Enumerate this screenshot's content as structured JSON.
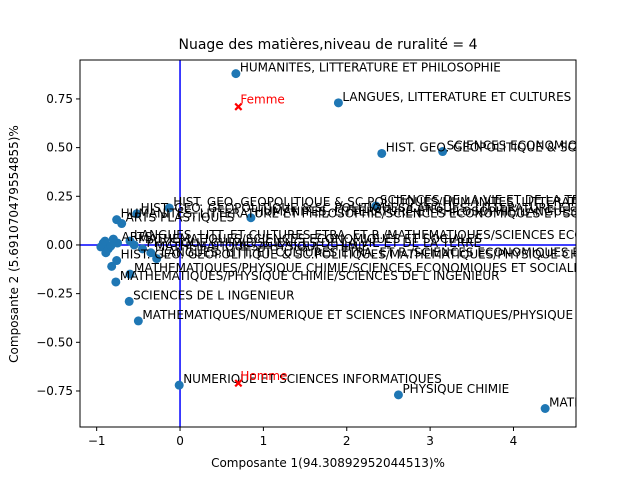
{
  "chart_data": {
    "type": "scatter",
    "title": "Nuage des matières,niveau de ruralité = 4",
    "xlabel": "Composante 1(94.30892952044513)%",
    "ylabel": "Composante 2 (5.691070479554855)%",
    "xlim": [
      -1.2,
      4.75
    ],
    "ylim": [
      -0.935,
      0.95
    ],
    "xticks": [
      -1,
      0,
      1,
      2,
      3,
      4
    ],
    "yticks": [
      -0.75,
      -0.5,
      -0.25,
      0.0,
      0.25,
      0.5,
      0.75
    ],
    "ytick_labels": [
      "−0.75",
      "−0.50",
      "−0.25",
      "0.00",
      "0.25",
      "0.50",
      "0.75"
    ],
    "xtick_labels": [
      "−1",
      "0",
      "1",
      "2",
      "3",
      "4"
    ],
    "grid": false,
    "colors": {
      "points": "#1f77b4",
      "supplementary": "#ff0000",
      "axes_lines": "#0000ff"
    },
    "reference_lines": {
      "x": 0,
      "y": 0
    },
    "series": [
      {
        "role": "individuals",
        "points": [
          {
            "x": 0.67,
            "y": 0.88,
            "label": "HUMANITES, LITTERATURE ET PHILOSOPHIE"
          },
          {
            "x": 1.9,
            "y": 0.73,
            "label": "LANGUES, LITTERATURE ET CULTURES ETRANGERES"
          },
          {
            "x": 3.15,
            "y": 0.48,
            "label": "SCIENCES ECONOMIQUES ET SOCIALES"
          },
          {
            "x": 2.42,
            "y": 0.47,
            "label": "HIST. GEO. GEOPOLITIQUE & SC.POLITIQUES"
          },
          {
            "x": 2.35,
            "y": 0.2,
            "label": "SCIENCES DE LA VIE ET DE LA TERRE"
          },
          {
            "x": -0.13,
            "y": 0.19,
            "label": "HIST. GEO. GEOPOLITIQUE & SC.POLITIQUES/HUMANITES, LITTERATURE ET PHILOSOPHIE"
          },
          {
            "x": -0.52,
            "y": 0.16,
            "label": "HIST. GEO. GEOPOLITIQUE & SC.POLITIQUES/LANGUES, LITTERATURE ET CULTURES ETRANGERES"
          },
          {
            "x": 0.85,
            "y": 0.14,
            "label": "HUMANITES, LITTERATURE ET PHILOSOPHIE/LANGUES, LITTERATURE ET CULTURES ETRANGERES"
          },
          {
            "x": -0.76,
            "y": 0.13,
            "label": "HUMANITES, LITTERATURE ET PHILOSOPHIE/SCIENCES ECONOMIQUES ET SOCIALES"
          },
          {
            "x": -0.7,
            "y": 0.11,
            "label": "ARTS PLASTIQUES"
          },
          {
            "x": -0.6,
            "y": 0.02,
            "label": "LANGUES, LITT. ET CULTURES ETRA. ET R./MATHEMATIQUES/SCIENCES ECONOMIQUES ET SOCIALES"
          },
          {
            "x": -0.75,
            "y": 0.01,
            "label": "ARTS"
          },
          {
            "x": -0.55,
            "y": 0.0,
            "label": "MATHEMATIQUES/SCIENCES ECONOMIQUES ET SOCIALES"
          },
          {
            "x": -0.45,
            "y": -0.02,
            "label": "PHYSIQUE CHIMIE/SCIENCES DE LA VIE ET DE LA TERRE"
          },
          {
            "x": -0.35,
            "y": -0.04,
            "label": "MATHEMATIQUES/PHYSIQUE CHIMIE"
          },
          {
            "x": -0.89,
            "y": -0.04,
            "label": ""
          },
          {
            "x": -0.28,
            "y": -0.07,
            "label": "LANGUES, LITT. ET CULTURES ETRA. ET R./SCIENCES ECONOMIQUES ET SOCIALES"
          },
          {
            "x": -0.76,
            "y": -0.08,
            "label": "HIST. GEO. GEOPOLITIQUE & SC.POLITIQUES/MATHEMATIQUES/PHYSIQUE CHIMIE"
          },
          {
            "x": -0.82,
            "y": -0.11,
            "label": ""
          },
          {
            "x": -0.6,
            "y": -0.15,
            "label": "MATHEMATIQUES/PHYSIQUE CHIMIE/SCIENCES ECONOMIQUES ET SOCIALES"
          },
          {
            "x": -0.77,
            "y": -0.19,
            "label": "MATHEMATIQUES/PHYSIQUE CHIMIE/SCIENCES DE L INGENIEUR"
          },
          {
            "x": -0.61,
            "y": -0.29,
            "label": "SCIENCES DE L INGENIEUR"
          },
          {
            "x": -0.5,
            "y": -0.39,
            "label": "MATHEMATIQUES/NUMERIQUE ET SCIENCES INFORMATIQUES/PHYSIQUE CHIMIE"
          },
          {
            "x": -0.01,
            "y": -0.72,
            "label": "NUMERIQUE ET SCIENCES INFORMATIQUES"
          },
          {
            "x": 2.62,
            "y": -0.77,
            "label": "PHYSIQUE CHIMIE"
          },
          {
            "x": 4.38,
            "y": -0.84,
            "label": "MATHEMATIQUES"
          },
          {
            "x": -0.92,
            "y": 0.01,
            "label": ""
          },
          {
            "x": -0.95,
            "y": -0.01,
            "label": ""
          },
          {
            "x": -0.9,
            "y": 0.02,
            "label": ""
          },
          {
            "x": -0.86,
            "y": -0.02,
            "label": ""
          },
          {
            "x": -0.8,
            "y": 0.03,
            "label": ""
          },
          {
            "x": -0.83,
            "y": -0.005,
            "label": ""
          }
        ]
      },
      {
        "role": "supplementary",
        "points": [
          {
            "x": 0.7,
            "y": 0.71,
            "label": "Femme"
          },
          {
            "x": 0.7,
            "y": -0.71,
            "label": "Homme"
          }
        ]
      }
    ]
  }
}
